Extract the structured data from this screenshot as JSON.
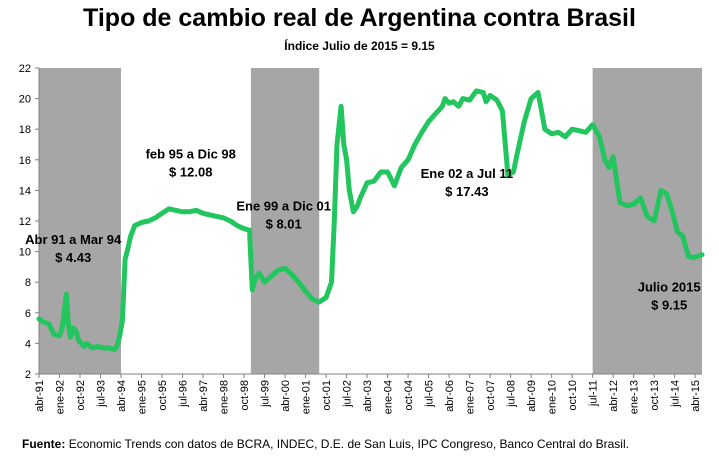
{
  "chart_data": {
    "type": "line",
    "title": "Tipo de cambio real de Argentina contra Brasil",
    "subtitle": "Índice Julio de 2015 = 9.15",
    "ylim": [
      2,
      22
    ],
    "yticks": [
      2,
      4,
      6,
      8,
      10,
      12,
      14,
      16,
      18,
      20,
      22
    ],
    "xlim": [
      1991.25,
      2015.5
    ],
    "xtick_labels": [
      "abr-91",
      "ene-92",
      "oct-92",
      "jul-93",
      "abr-94",
      "ene-95",
      "oct-95",
      "jul-96",
      "abr-97",
      "ene-98",
      "oct-98",
      "jul-99",
      "abr-00",
      "ene-01",
      "oct-01",
      "jul-02",
      "abr-03",
      "ene-04",
      "oct-04",
      "jul-05",
      "abr-06",
      "ene-07",
      "oct-07",
      "jul-08",
      "abr-09",
      "ene-10",
      "oct-10",
      "jul-11",
      "abr-12",
      "ene-13",
      "oct-13",
      "jul-14",
      "abr-15"
    ],
    "xtick_start": 1991.25,
    "xtick_step": 0.75,
    "series_color": "#22c55e",
    "shade_color": "#a6a6a6",
    "shaded_periods": [
      [
        1991.25,
        1994.25
      ],
      [
        1999.0,
        2001.5
      ],
      [
        2011.5,
        2015.5
      ]
    ],
    "annotations": [
      {
        "line1": "Abr 91 a Mar 94",
        "line2": "$ 4.43",
        "x": 1992.5,
        "y": 10.5
      },
      {
        "line1": "feb 95 a Dic 98",
        "line2": "$ 12.08",
        "x": 1996.8,
        "y": 16.1
      },
      {
        "line1": "Ene 99 a Dic 01",
        "line2": "$ 8.01",
        "x": 2000.2,
        "y": 12.7
      },
      {
        "line1": "Ene 02 a Jul 11",
        "line2": "$ 17.43",
        "x": 2006.9,
        "y": 14.8
      },
      {
        "line1": "Julio 2015",
        "line2": "$ 9.15",
        "x": 2014.3,
        "y": 7.4
      }
    ],
    "series": [
      {
        "name": "Tipo de cambio real Argentina / Brasil",
        "x": [
          1991.25,
          1991.4,
          1991.6,
          1991.8,
          1992.0,
          1992.1,
          1992.25,
          1992.33,
          1992.4,
          1992.5,
          1992.6,
          1992.7,
          1992.8,
          1992.9,
          1993.0,
          1993.2,
          1993.4,
          1993.6,
          1993.8,
          1994.0,
          1994.1,
          1994.2,
          1994.3,
          1994.4,
          1994.5,
          1994.6,
          1994.75,
          1995.0,
          1995.25,
          1995.5,
          1995.75,
          1996.0,
          1996.25,
          1996.5,
          1996.75,
          1997.0,
          1997.25,
          1997.5,
          1997.75,
          1998.0,
          1998.25,
          1998.5,
          1998.75,
          1998.95,
          1999.05,
          1999.15,
          1999.3,
          1999.5,
          1999.75,
          2000.0,
          2000.25,
          2000.5,
          2000.75,
          2001.0,
          2001.25,
          2001.5,
          2001.75,
          2001.95,
          2002.05,
          2002.15,
          2002.3,
          2002.4,
          2002.5,
          2002.6,
          2002.75,
          2002.9,
          2003.0,
          2003.25,
          2003.5,
          2003.75,
          2004.0,
          2004.25,
          2004.5,
          2004.75,
          2005.0,
          2005.25,
          2005.5,
          2005.75,
          2006.0,
          2006.1,
          2006.25,
          2006.4,
          2006.6,
          2006.75,
          2007.0,
          2007.25,
          2007.5,
          2007.6,
          2007.75,
          2008.0,
          2008.2,
          2008.4,
          2008.6,
          2008.75,
          2009.0,
          2009.25,
          2009.5,
          2009.6,
          2009.75,
          2010.0,
          2010.25,
          2010.5,
          2010.75,
          2011.0,
          2011.25,
          2011.5,
          2011.75,
          2011.95,
          2012.1,
          2012.25,
          2012.5,
          2012.75,
          2013.0,
          2013.25,
          2013.5,
          2013.75,
          2014.0,
          2014.2,
          2014.4,
          2014.6,
          2014.8,
          2015.0,
          2015.2,
          2015.35,
          2015.5
        ],
        "y": [
          5.6,
          5.4,
          5.3,
          4.6,
          4.5,
          5.0,
          7.2,
          5.2,
          4.4,
          5.0,
          4.8,
          4.2,
          4.0,
          3.8,
          4.0,
          3.7,
          3.8,
          3.7,
          3.7,
          3.6,
          3.8,
          4.5,
          5.5,
          9.5,
          10.2,
          11.0,
          11.7,
          11.9,
          12.0,
          12.2,
          12.5,
          12.8,
          12.7,
          12.6,
          12.6,
          12.7,
          12.5,
          12.4,
          12.3,
          12.2,
          12.0,
          11.7,
          11.5,
          11.4,
          7.5,
          8.2,
          8.6,
          8.0,
          8.4,
          8.8,
          8.9,
          8.5,
          8.0,
          7.4,
          6.9,
          6.7,
          7.0,
          8.0,
          12.0,
          17.0,
          19.5,
          17.0,
          16.0,
          14.0,
          12.6,
          13.0,
          13.5,
          14.5,
          14.6,
          15.2,
          15.2,
          14.3,
          15.5,
          16.0,
          17.0,
          17.8,
          18.5,
          19.0,
          19.5,
          20.0,
          19.7,
          19.8,
          19.5,
          20.0,
          19.9,
          20.5,
          20.4,
          19.8,
          20.2,
          19.9,
          19.2,
          15.0,
          15.2,
          16.5,
          18.5,
          20.0,
          20.4,
          19.5,
          18.0,
          17.7,
          17.8,
          17.5,
          18.0,
          17.9,
          17.8,
          18.3,
          17.5,
          16.0,
          15.5,
          16.2,
          13.2,
          13.0,
          13.1,
          13.5,
          12.3,
          12.0,
          14.0,
          13.8,
          12.7,
          11.3,
          11.0,
          9.7,
          9.6,
          9.7,
          9.8
        ]
      }
    ]
  },
  "source": {
    "label": "Fuente:",
    "text": "Economic Trends con datos de BCRA, INDEC, D.E. de San Luis, IPC Congreso, Banco Central do Brasil."
  }
}
